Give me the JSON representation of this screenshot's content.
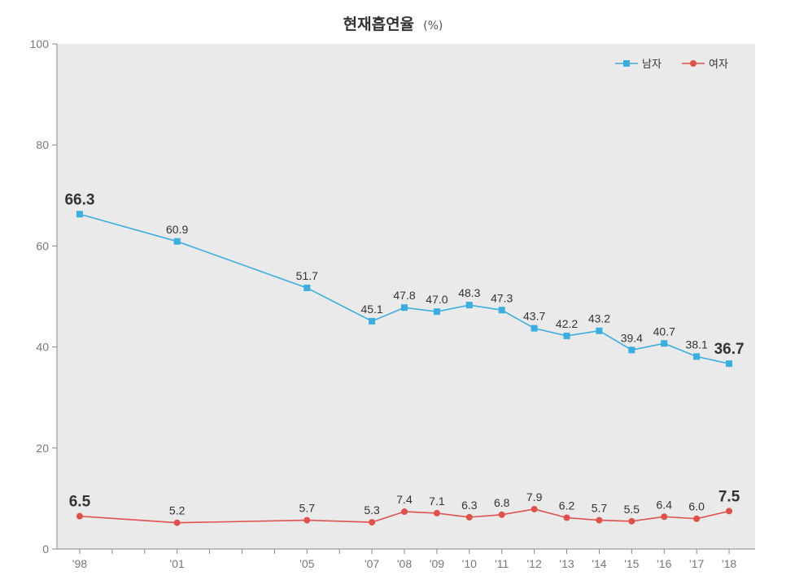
{
  "chart_data": {
    "type": "line",
    "title": "현재흡연율",
    "title_unit": "(%)",
    "x": [
      "'98",
      "'01",
      "'05",
      "'07",
      "'08",
      "'09",
      "'10",
      "'11",
      "'12",
      "'13",
      "'14",
      "'15",
      "'16",
      "'17",
      "'18"
    ],
    "x_years": [
      1998,
      2001,
      2005,
      2007,
      2008,
      2009,
      2010,
      2011,
      2012,
      2013,
      2014,
      2015,
      2016,
      2017,
      2018
    ],
    "ylim": [
      0,
      100
    ],
    "yticks": [
      "0",
      "20",
      "40",
      "60",
      "80",
      "100"
    ],
    "legend_position": "top-right",
    "background": "#eaeaea",
    "series": [
      {
        "name": "남자",
        "color": "#3aaee0",
        "marker": "square",
        "values": [
          66.3,
          60.9,
          51.7,
          45.1,
          47.8,
          47.0,
          48.3,
          47.3,
          43.7,
          42.2,
          43.2,
          39.4,
          40.7,
          38.1,
          36.7
        ],
        "labels": [
          "66.3",
          "60.9",
          "51.7",
          "45.1",
          "47.8",
          "47.0",
          "48.3",
          "47.3",
          "43.7",
          "42.2",
          "43.2",
          "39.4",
          "40.7",
          "38.1",
          "36.7"
        ]
      },
      {
        "name": "여자",
        "color": "#e0514a",
        "marker": "circle",
        "values": [
          6.5,
          5.2,
          5.7,
          5.3,
          7.4,
          7.1,
          6.3,
          6.8,
          7.9,
          6.2,
          5.7,
          5.5,
          6.4,
          6.0,
          7.5
        ],
        "labels": [
          "6.5",
          "5.2",
          "5.7",
          "5.3",
          "7.4",
          "7.1",
          "6.3",
          "6.8",
          "7.9",
          "6.2",
          "5.7",
          "5.5",
          "6.4",
          "6.0",
          "7.5"
        ]
      }
    ]
  }
}
